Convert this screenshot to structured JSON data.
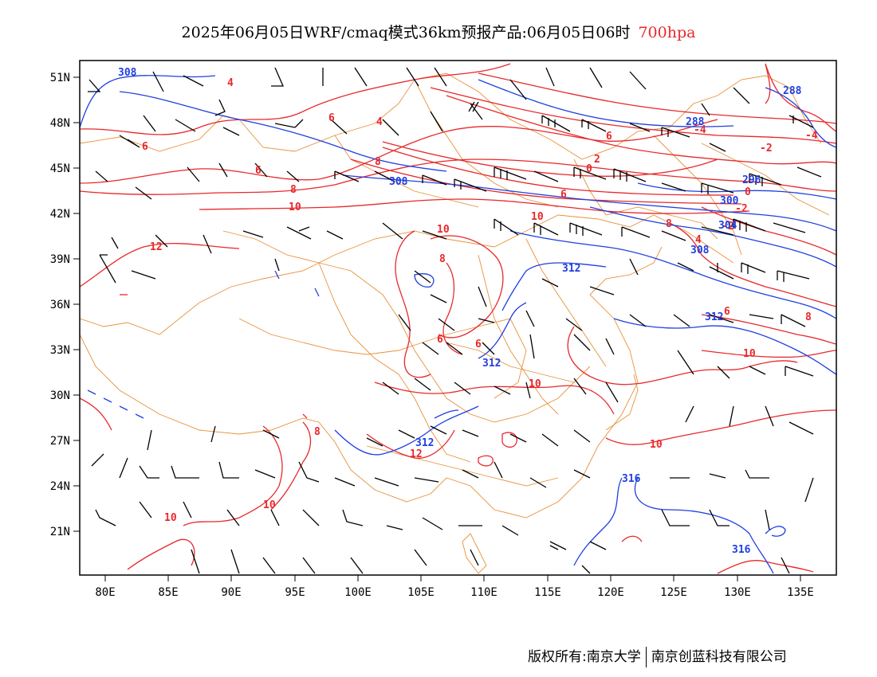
{
  "title": {
    "main": "2025年06月05日WRF/cmaq模式36km预报产品:06月05日06时",
    "level": "700hpa"
  },
  "footer": {
    "copyright": "版权所有:南京大学",
    "company": "南京创蓝科技有限公司"
  },
  "axes": {
    "lat_labels": [
      "51N",
      "48N",
      "45N",
      "42N",
      "39N",
      "36N",
      "33N",
      "30N",
      "27N",
      "24N",
      "21N"
    ],
    "lon_labels": [
      "80E",
      "85E",
      "90E",
      "95E",
      "100E",
      "105E",
      "110E",
      "115E",
      "120E",
      "125E",
      "130E",
      "135E"
    ]
  },
  "colors": {
    "temperature": "#e8282b",
    "height": "#2040e0",
    "border": "#e8913a",
    "wind": "#000000"
  },
  "contour_labels": {
    "temperature": [
      "4",
      "6",
      "4",
      "6",
      "2",
      "0",
      "-4",
      "-2",
      "-4",
      "6",
      "8",
      "6",
      "8",
      "10",
      "10",
      "0",
      "-2",
      "-2",
      "6",
      "10",
      "12",
      "8",
      "8",
      "4",
      "6",
      "8",
      "6",
      "6",
      "10",
      "10",
      "10",
      "12",
      "8",
      "10",
      "10"
    ],
    "height": [
      "308",
      "288",
      "288",
      "308",
      "296",
      "300",
      "304",
      "308",
      "312",
      "312",
      "312",
      "312",
      "316",
      "316"
    ]
  }
}
